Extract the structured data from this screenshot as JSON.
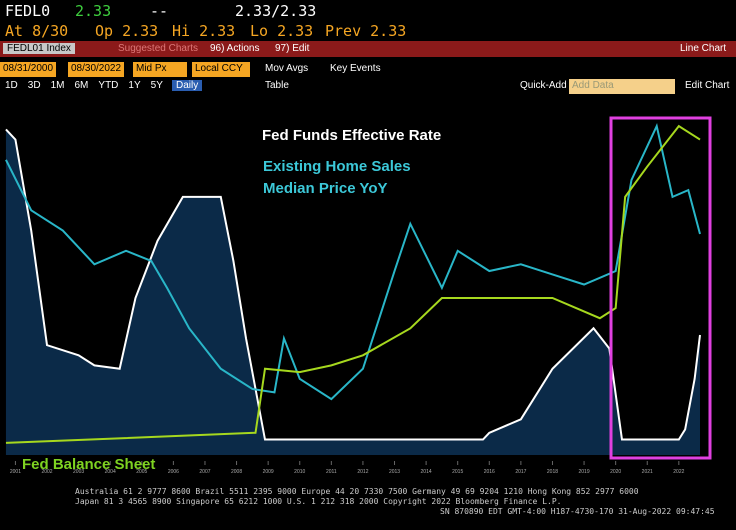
{
  "header": {
    "ticker": "FEDL0",
    "last": "2.33",
    "change": "--",
    "bid_ask": "2.33/2.33",
    "date": "At 8/30",
    "open": "Op 2.33",
    "high": "Hi 2.33",
    "low": "Lo 2.33",
    "prev": "Prev 2.33"
  },
  "menu": {
    "security": "FEDL01 Index",
    "suggested": "Suggested Charts",
    "actions": "96) Actions",
    "edit": "97) Edit",
    "view": "Line Chart"
  },
  "controls": {
    "start": "08/31/2000",
    "end": "08/30/2022",
    "field": "Mid Px",
    "currency": "Local CCY",
    "mov_avgs": "Mov Avgs",
    "key_events": "Key Events"
  },
  "periods": [
    "1D",
    "3D",
    "1M",
    "6M",
    "YTD",
    "1Y",
    "5Y",
    "Max"
  ],
  "frequency": "Daily",
  "table": "Table",
  "quick_add": "Quick-Add",
  "add_data": "Add Data",
  "edit_chart": "Edit Chart",
  "chart_data": {
    "type": "line",
    "annotations": [
      "Fed Funds Effective Rate",
      "Existing Home Sales",
      "Median Price YoY",
      "Fed Balance Sheet"
    ],
    "xlim": [
      2000.67,
      2022.67
    ],
    "xticks": [
      2001,
      2002,
      2003,
      2004,
      2005,
      2006,
      2007,
      2008,
      2009,
      2010,
      2011,
      2012,
      2013,
      2014,
      2015,
      2016,
      2017,
      2018,
      2019,
      2020,
      2021,
      2022
    ],
    "ylim": [
      0,
      100
    ],
    "series": [
      {
        "color": "#ffffff",
        "x": [
          2000.7,
          2001.0,
          2001.5,
          2002.0,
          2003.0,
          2003.5,
          2004.3,
          2004.8,
          2005.5,
          2006.3,
          2007.5,
          2007.9,
          2008.3,
          2008.9,
          2012.0,
          2015.8,
          2016.0,
          2017.0,
          2018.0,
          2019.3,
          2019.8,
          2020.2,
          2022.0,
          2022.2,
          2022.5,
          2022.67
        ],
        "values": [
          96,
          93,
          66,
          32,
          29,
          26,
          25,
          46,
          63,
          76,
          76,
          57,
          34,
          4,
          4,
          4,
          6,
          10,
          25,
          37,
          31,
          4,
          4,
          7,
          22,
          35
        ]
      },
      {
        "color": "#29b6c8",
        "x": [
          2000.7,
          2001.5,
          2002.5,
          2003.5,
          2004.5,
          2005.3,
          2005.8,
          2006.5,
          2007.5,
          2008.5,
          2009.2,
          2009.5,
          2010.0,
          2011.0,
          2012.0,
          2013.0,
          2013.5,
          2014.5,
          2015.0,
          2016.0,
          2017.0,
          2018.0,
          2019.0,
          2020.0,
          2020.5,
          2021.3,
          2021.8,
          2022.3,
          2022.67
        ],
        "values": [
          87,
          72,
          66,
          56,
          60,
          57,
          49,
          37,
          25,
          19,
          18,
          34,
          22,
          16,
          25,
          54,
          68,
          49,
          60,
          54,
          56,
          53,
          50,
          54,
          81,
          97,
          76,
          78,
          65
        ]
      },
      {
        "color": "#a6d81e",
        "x": [
          2000.7,
          2008.6,
          2008.9,
          2010.0,
          2011.0,
          2012.0,
          2013.5,
          2014.5,
          2017.0,
          2018.0,
          2019.5,
          2020.0,
          2020.3,
          2021.0,
          2022.0,
          2022.67
        ],
        "values": [
          3,
          6,
          25,
          24,
          26,
          29,
          37,
          46,
          46,
          46,
          40,
          43,
          76,
          85,
          97,
          93
        ]
      }
    ]
  },
  "footer": [
    "Australia 61 2 9777 8600 Brazil 5511 2395 9000 Europe 44 20 7330 7500 Germany 49 69 9204 1210 Hong Kong 852 2977 6000",
    "Japan 81 3 4565 8900    Singapore 65 6212 1000    U.S. 1 212 318 2000    Copyright 2022 Bloomberg Finance L.P.",
    "SN 870890 EDT  GMT-4:00 H187-4730-170 31-Aug-2022 09:47:45"
  ]
}
